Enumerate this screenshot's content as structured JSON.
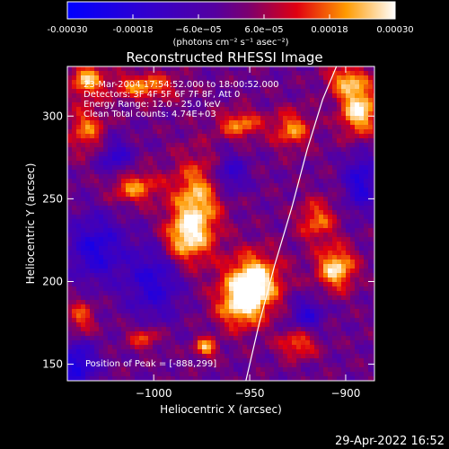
{
  "chart_data": {
    "type": "heatmap",
    "title": "Reconstructed RHESSI Image",
    "xlabel": "Heliocentric X (arcsec)",
    "ylabel": "Heliocentric Y (arcsec)",
    "xlim": [
      -1045,
      -885
    ],
    "ylim": [
      140,
      330
    ],
    "xticks": [
      -1000,
      -950,
      -900
    ],
    "xtick_labels": [
      "−1000",
      "−950",
      "−900"
    ],
    "yticks": [
      150,
      200,
      250,
      300
    ],
    "ytick_labels": [
      "150",
      "200",
      "250",
      "300"
    ],
    "colorbar": {
      "range": [
        -0.0003,
        0.0003
      ],
      "tick_values": [
        -0.0003,
        -0.00018,
        -6e-05,
        6e-05,
        0.00018,
        0.0003
      ],
      "tick_labels": [
        "-0.00030",
        "-0.00018",
        "−6.0e−05",
        "6.0e−05",
        "0.00018",
        "0.00030"
      ],
      "unit_label": "(photons cm⁻² s⁻¹ asec⁻²)"
    },
    "annotations": [
      "23-Mar-2004 17:54:52.000 to 18:00:52.000",
      "Detectors: 3F 4F 5F 6F 7F 8F, Att 0",
      "Energy Range: 12.0 - 25.0 keV",
      "Clean     Total counts: 4.74E+03"
    ],
    "peak_label": "Position of Peak = [-888,299]",
    "peak_position": [
      -888,
      299
    ],
    "limb_curve_x": [
      -952,
      -945,
      -937,
      -928,
      -920,
      -912,
      -903
    ],
    "limb_curve_y": [
      140,
      175,
      210,
      245,
      280,
      310,
      335
    ],
    "blobs": [
      {
        "x": -948,
        "y": 200,
        "amp": 1.6,
        "sx": 10,
        "sy": 12
      },
      {
        "x": -955,
        "y": 185,
        "amp": 1.1,
        "sx": 9,
        "sy": 10
      },
      {
        "x": -978,
        "y": 245,
        "amp": 1.3,
        "sx": 9,
        "sy": 20
      },
      {
        "x": -985,
        "y": 225,
        "amp": 0.9,
        "sx": 8,
        "sy": 10
      },
      {
        "x": -1010,
        "y": 257,
        "amp": 1.0,
        "sx": 9,
        "sy": 7
      },
      {
        "x": -1035,
        "y": 292,
        "amp": 0.9,
        "sx": 7,
        "sy": 10
      },
      {
        "x": -1035,
        "y": 322,
        "amp": 1.2,
        "sx": 6,
        "sy": 7
      },
      {
        "x": -1005,
        "y": 318,
        "amp": 1.0,
        "sx": 12,
        "sy": 6
      },
      {
        "x": -905,
        "y": 208,
        "amp": 1.4,
        "sx": 7,
        "sy": 9
      },
      {
        "x": -915,
        "y": 237,
        "amp": 0.9,
        "sx": 7,
        "sy": 9
      },
      {
        "x": -893,
        "y": 304,
        "amp": 1.5,
        "sx": 7,
        "sy": 11
      },
      {
        "x": -900,
        "y": 322,
        "amp": 1.0,
        "sx": 7,
        "sy": 6
      },
      {
        "x": -928,
        "y": 292,
        "amp": 1.0,
        "sx": 7,
        "sy": 8
      },
      {
        "x": -955,
        "y": 295,
        "amp": 1.0,
        "sx": 8,
        "sy": 6
      },
      {
        "x": -925,
        "y": 162,
        "amp": 0.9,
        "sx": 7,
        "sy": 6
      },
      {
        "x": -973,
        "y": 160,
        "amp": 1.2,
        "sx": 4,
        "sy": 4
      },
      {
        "x": -1005,
        "y": 166,
        "amp": 0.8,
        "sx": 6,
        "sy": 5
      },
      {
        "x": -1038,
        "y": 178,
        "amp": 0.8,
        "sx": 5,
        "sy": 8
      },
      {
        "x": -1000,
        "y": 200,
        "amp": -0.9,
        "sx": 10,
        "sy": 16
      },
      {
        "x": -1030,
        "y": 220,
        "amp": -1.0,
        "sx": 10,
        "sy": 14
      },
      {
        "x": -892,
        "y": 260,
        "amp": -1.0,
        "sx": 6,
        "sy": 12
      },
      {
        "x": -1040,
        "y": 150,
        "amp": -1.1,
        "sx": 7,
        "sy": 10
      },
      {
        "x": -960,
        "y": 265,
        "amp": -0.8,
        "sx": 6,
        "sy": 8
      },
      {
        "x": -920,
        "y": 180,
        "amp": -0.8,
        "sx": 6,
        "sy": 7
      },
      {
        "x": -1020,
        "y": 275,
        "amp": -0.8,
        "sx": 6,
        "sy": 8
      }
    ]
  },
  "footer": {
    "timestamp": "29-Apr-2022 16:52"
  }
}
